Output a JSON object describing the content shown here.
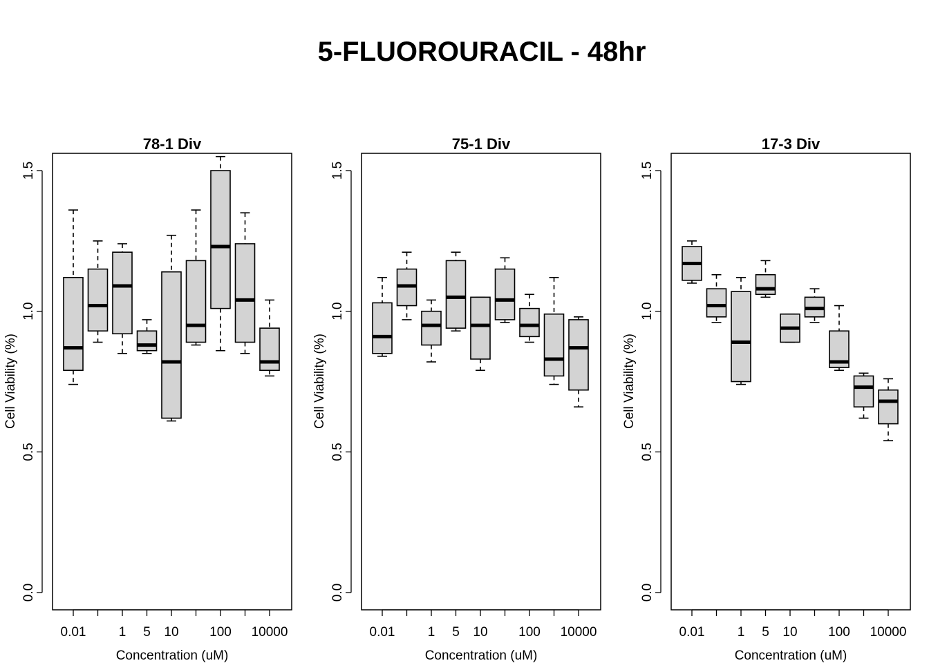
{
  "figure_title": "5-FLUOROURACIL - 48hr",
  "chart_data": [
    {
      "type": "box",
      "title": "78-1 Div",
      "xlabel": "Concentration (uM)",
      "ylabel": "Cell Viability (%)",
      "ylim": [
        0.0,
        1.55
      ],
      "yticks": [
        "0.0",
        "0.5",
        "1.0",
        "1.5"
      ],
      "xticklabels": [
        "0.01",
        "",
        "1",
        "5",
        "10",
        "",
        "100",
        "",
        "10000"
      ],
      "box_color": "#d3d3d3",
      "boxes": [
        {
          "min": 0.74,
          "q1": 0.79,
          "median": 0.87,
          "q3": 1.12,
          "max": 1.36
        },
        {
          "min": 0.89,
          "q1": 0.93,
          "median": 1.02,
          "q3": 1.15,
          "max": 1.25
        },
        {
          "min": 0.85,
          "q1": 0.92,
          "median": 1.09,
          "q3": 1.21,
          "max": 1.24
        },
        {
          "min": 0.85,
          "q1": 0.86,
          "median": 0.88,
          "q3": 0.93,
          "max": 0.97
        },
        {
          "min": 0.61,
          "q1": 0.62,
          "median": 0.82,
          "q3": 1.14,
          "max": 1.27
        },
        {
          "min": 0.88,
          "q1": 0.89,
          "median": 0.95,
          "q3": 1.18,
          "max": 1.36
        },
        {
          "min": 0.86,
          "q1": 1.01,
          "median": 1.23,
          "q3": 1.5,
          "max": 1.55
        },
        {
          "min": 0.85,
          "q1": 0.89,
          "median": 1.04,
          "q3": 1.24,
          "max": 1.35
        },
        {
          "min": 0.77,
          "q1": 0.79,
          "median": 0.82,
          "q3": 0.94,
          "max": 1.04
        }
      ]
    },
    {
      "type": "box",
      "title": "75-1 Div",
      "xlabel": "Concentration (uM)",
      "ylabel": "Cell Viability (%)",
      "ylim": [
        0.0,
        1.55
      ],
      "yticks": [
        "0.0",
        "0.5",
        "1.0",
        "1.5"
      ],
      "xticklabels": [
        "0.01",
        "",
        "1",
        "5",
        "10",
        "",
        "100",
        "",
        "10000"
      ],
      "box_color": "#d3d3d3",
      "boxes": [
        {
          "min": 0.84,
          "q1": 0.85,
          "median": 0.91,
          "q3": 1.03,
          "max": 1.12
        },
        {
          "min": 0.97,
          "q1": 1.02,
          "median": 1.09,
          "q3": 1.15,
          "max": 1.21
        },
        {
          "min": 0.82,
          "q1": 0.88,
          "median": 0.95,
          "q3": 1.0,
          "max": 1.04
        },
        {
          "min": 0.93,
          "q1": 0.94,
          "median": 1.05,
          "q3": 1.18,
          "max": 1.21
        },
        {
          "min": 0.79,
          "q1": 0.83,
          "median": 0.95,
          "q3": 1.05,
          "max": 1.05
        },
        {
          "min": 0.96,
          "q1": 0.97,
          "median": 1.04,
          "q3": 1.15,
          "max": 1.19
        },
        {
          "min": 0.89,
          "q1": 0.91,
          "median": 0.95,
          "q3": 1.01,
          "max": 1.06
        },
        {
          "min": 0.74,
          "q1": 0.77,
          "median": 0.83,
          "q3": 0.99,
          "max": 1.12
        },
        {
          "min": 0.66,
          "q1": 0.72,
          "median": 0.87,
          "q3": 0.97,
          "max": 0.98
        }
      ]
    },
    {
      "type": "box",
      "title": "17-3 Div",
      "xlabel": "Concentration (uM)",
      "ylabel": "Cell Viability (%)",
      "ylim": [
        0.0,
        1.55
      ],
      "yticks": [
        "0.0",
        "0.5",
        "1.0",
        "1.5"
      ],
      "xticklabels": [
        "0.01",
        "",
        "1",
        "5",
        "10",
        "",
        "100",
        "",
        "10000"
      ],
      "box_color": "#d3d3d3",
      "boxes": [
        {
          "min": 1.1,
          "q1": 1.11,
          "median": 1.17,
          "q3": 1.23,
          "max": 1.25
        },
        {
          "min": 0.96,
          "q1": 0.98,
          "median": 1.02,
          "q3": 1.08,
          "max": 1.13
        },
        {
          "min": 0.74,
          "q1": 0.75,
          "median": 0.89,
          "q3": 1.07,
          "max": 1.12
        },
        {
          "min": 1.05,
          "q1": 1.06,
          "median": 1.08,
          "q3": 1.13,
          "max": 1.18
        },
        {
          "min": 0.89,
          "q1": 0.89,
          "median": 0.94,
          "q3": 0.99,
          "max": 0.99
        },
        {
          "min": 0.96,
          "q1": 0.98,
          "median": 1.01,
          "q3": 1.05,
          "max": 1.08
        },
        {
          "min": 0.79,
          "q1": 0.8,
          "median": 0.82,
          "q3": 0.93,
          "max": 1.02
        },
        {
          "min": 0.62,
          "q1": 0.66,
          "median": 0.73,
          "q3": 0.77,
          "max": 0.78
        },
        {
          "min": 0.54,
          "q1": 0.6,
          "median": 0.68,
          "q3": 0.72,
          "max": 0.76
        }
      ]
    }
  ]
}
